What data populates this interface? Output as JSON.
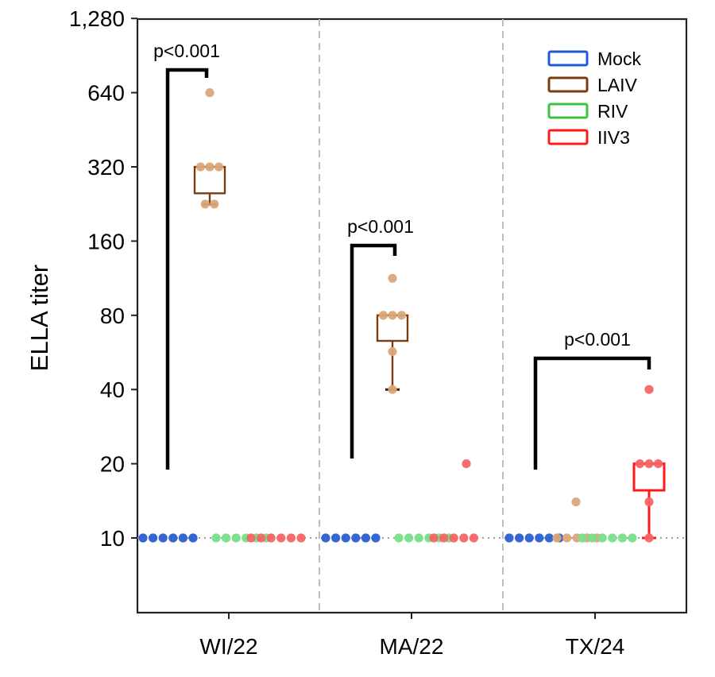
{
  "chart_data": {
    "type": "scatter",
    "subtype": "box-and-dot",
    "title": "",
    "xlabel": "",
    "ylabel": "ELLA titer",
    "yscale": "log2",
    "ylim": [
      5,
      1280
    ],
    "yticks": [
      10,
      20,
      40,
      80,
      160,
      320,
      640,
      1280
    ],
    "ytick_labels": [
      "10",
      "20",
      "40",
      "80",
      "160",
      "320",
      "640",
      "1,280"
    ],
    "categories": [
      "WI/22",
      "MA/22",
      "TX/24"
    ],
    "reference_line": {
      "y": 10,
      "style": "dotted",
      "color": "#999999"
    },
    "grid": false,
    "legend": {
      "position": "top-right",
      "entries": [
        {
          "label": "Mock",
          "color": "#1f5bd6"
        },
        {
          "label": "LAIV",
          "color": "#7a3d12"
        },
        {
          "label": "RIV",
          "color": "#3cc43c"
        },
        {
          "label": "IIV3",
          "color": "#ff1a1a"
        }
      ]
    },
    "point_colors": {
      "Mock": "#2a5fd0",
      "LAIV": "#dba67a",
      "RIV": "#78df88",
      "IIV3": "#f76464"
    },
    "series": [
      {
        "category": "WI/22",
        "groups": [
          {
            "name": "Mock",
            "values": [
              10,
              10,
              10,
              10,
              10,
              10
            ]
          },
          {
            "name": "LAIV",
            "values": [
              640,
              320,
              320,
              320,
              226,
              226
            ],
            "box": {
              "q1": 250,
              "median": 320,
              "q3": 320,
              "whisker_low": 226,
              "whisker_high": 320
            }
          },
          {
            "name": "RIV",
            "values": [
              10,
              10,
              10,
              10,
              10,
              10
            ]
          },
          {
            "name": "IIV3",
            "values": [
              10,
              10,
              10,
              10,
              10,
              10
            ]
          }
        ],
        "annotation": "p<0.001"
      },
      {
        "category": "MA/22",
        "groups": [
          {
            "name": "Mock",
            "values": [
              10,
              10,
              10,
              10,
              10,
              10
            ]
          },
          {
            "name": "LAIV",
            "values": [
              113,
              80,
              80,
              80,
              57,
              40
            ],
            "box": {
              "q1": 63,
              "median": 80,
              "q3": 80,
              "whisker_low": 40,
              "whisker_high": 80
            }
          },
          {
            "name": "RIV",
            "values": [
              10,
              10,
              10,
              10,
              10,
              10
            ]
          },
          {
            "name": "IIV3",
            "values": [
              20,
              10,
              10,
              10,
              10,
              10
            ]
          }
        ],
        "annotation": "p<0.001"
      },
      {
        "category": "TX/24",
        "groups": [
          {
            "name": "Mock",
            "values": [
              10,
              10,
              10,
              10,
              10,
              10
            ]
          },
          {
            "name": "LAIV",
            "values": [
              14,
              10,
              10,
              10,
              10,
              10
            ]
          },
          {
            "name": "RIV",
            "values": [
              10,
              10,
              10,
              10,
              10,
              10
            ]
          },
          {
            "name": "IIV3",
            "values": [
              40,
              20,
              20,
              20,
              14,
              10
            ],
            "box": {
              "q1": 15.6,
              "median": 20,
              "q3": 20,
              "whisker_low": 10,
              "whisker_high": 20
            }
          }
        ],
        "annotation": "p<0.001"
      }
    ]
  }
}
